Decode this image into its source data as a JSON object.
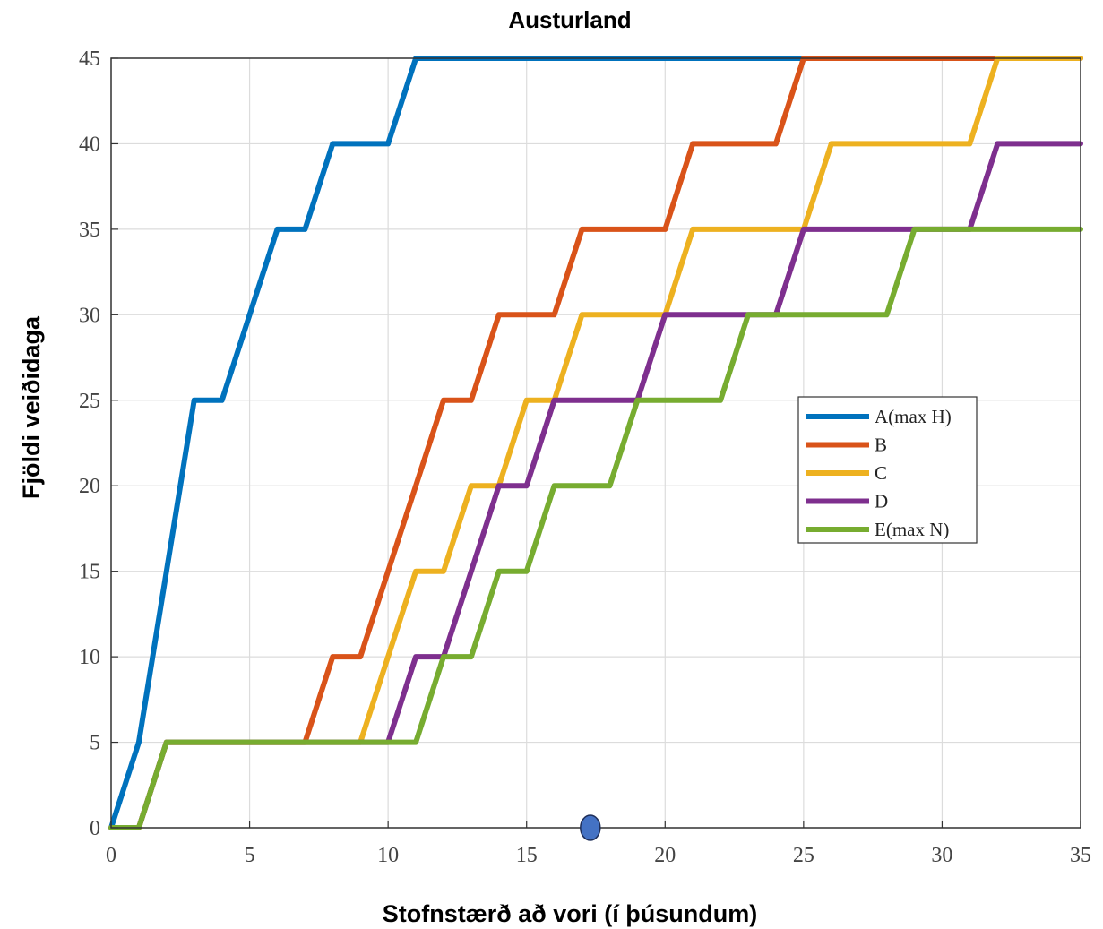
{
  "chart_data": {
    "type": "line",
    "title": "Austurland",
    "xlabel": "Stofnstærð að vori (í þúsundum)",
    "ylabel": "Fjöldi veiðidaga",
    "xlim": [
      0,
      35
    ],
    "ylim": [
      0,
      45
    ],
    "xticks": [
      0,
      5,
      10,
      15,
      20,
      25,
      30,
      35
    ],
    "yticks": [
      0,
      5,
      10,
      15,
      20,
      25,
      30,
      35,
      40,
      45
    ],
    "grid": true,
    "legend_position": "right-middle",
    "series": [
      {
        "name": "A(max H)",
        "color": "#0072BD",
        "x": [
          0,
          1,
          2,
          3,
          4,
          5,
          6,
          7,
          8,
          9,
          10,
          11,
          35
        ],
        "y": [
          0,
          5,
          15,
          25,
          25,
          30,
          35,
          35,
          40,
          40,
          40,
          45,
          45
        ]
      },
      {
        "name": "B",
        "color": "#D95319",
        "x": [
          0,
          1,
          2,
          7,
          8,
          9,
          10,
          11,
          12,
          13,
          14,
          15,
          16,
          17,
          18,
          19,
          20,
          21,
          22,
          23,
          24,
          25,
          32,
          35
        ],
        "y": [
          0,
          0,
          5,
          5,
          10,
          10,
          15,
          20,
          25,
          25,
          30,
          30,
          30,
          35,
          35,
          35,
          35,
          40,
          40,
          40,
          40,
          45,
          45,
          45
        ]
      },
      {
        "name": "C",
        "color": "#EDB120",
        "x": [
          0,
          1,
          2,
          9,
          10,
          11,
          12,
          13,
          14,
          15,
          16,
          17,
          18,
          19,
          20,
          21,
          22,
          23,
          24,
          25,
          26,
          27,
          28,
          29,
          30,
          31,
          32,
          35
        ],
        "y": [
          0,
          0,
          5,
          5,
          10,
          15,
          15,
          20,
          20,
          25,
          25,
          30,
          30,
          30,
          30,
          35,
          35,
          35,
          35,
          35,
          40,
          40,
          40,
          40,
          40,
          40,
          45,
          45
        ]
      },
      {
        "name": "D",
        "color": "#7E2F8E",
        "x": [
          0,
          1,
          2,
          10,
          11,
          12,
          13,
          14,
          15,
          16,
          17,
          18,
          19,
          20,
          21,
          22,
          23,
          24,
          25,
          26,
          27,
          28,
          29,
          30,
          31,
          32,
          35
        ],
        "y": [
          0,
          0,
          5,
          5,
          10,
          10,
          15,
          20,
          20,
          25,
          25,
          25,
          25,
          30,
          30,
          30,
          30,
          30,
          35,
          35,
          35,
          35,
          35,
          35,
          35,
          40,
          40
        ]
      },
      {
        "name": "E(max N)",
        "color": "#77AC30",
        "x": [
          0,
          1,
          2,
          11,
          12,
          13,
          14,
          15,
          16,
          17,
          18,
          19,
          20,
          21,
          22,
          23,
          24,
          25,
          26,
          27,
          28,
          29,
          35
        ],
        "y": [
          0,
          0,
          5,
          5,
          10,
          10,
          15,
          15,
          20,
          20,
          20,
          25,
          25,
          25,
          25,
          30,
          30,
          30,
          30,
          30,
          30,
          35,
          35
        ]
      }
    ]
  },
  "marker": {
    "x": 17.3,
    "y": 0,
    "color": "#4472C4"
  }
}
